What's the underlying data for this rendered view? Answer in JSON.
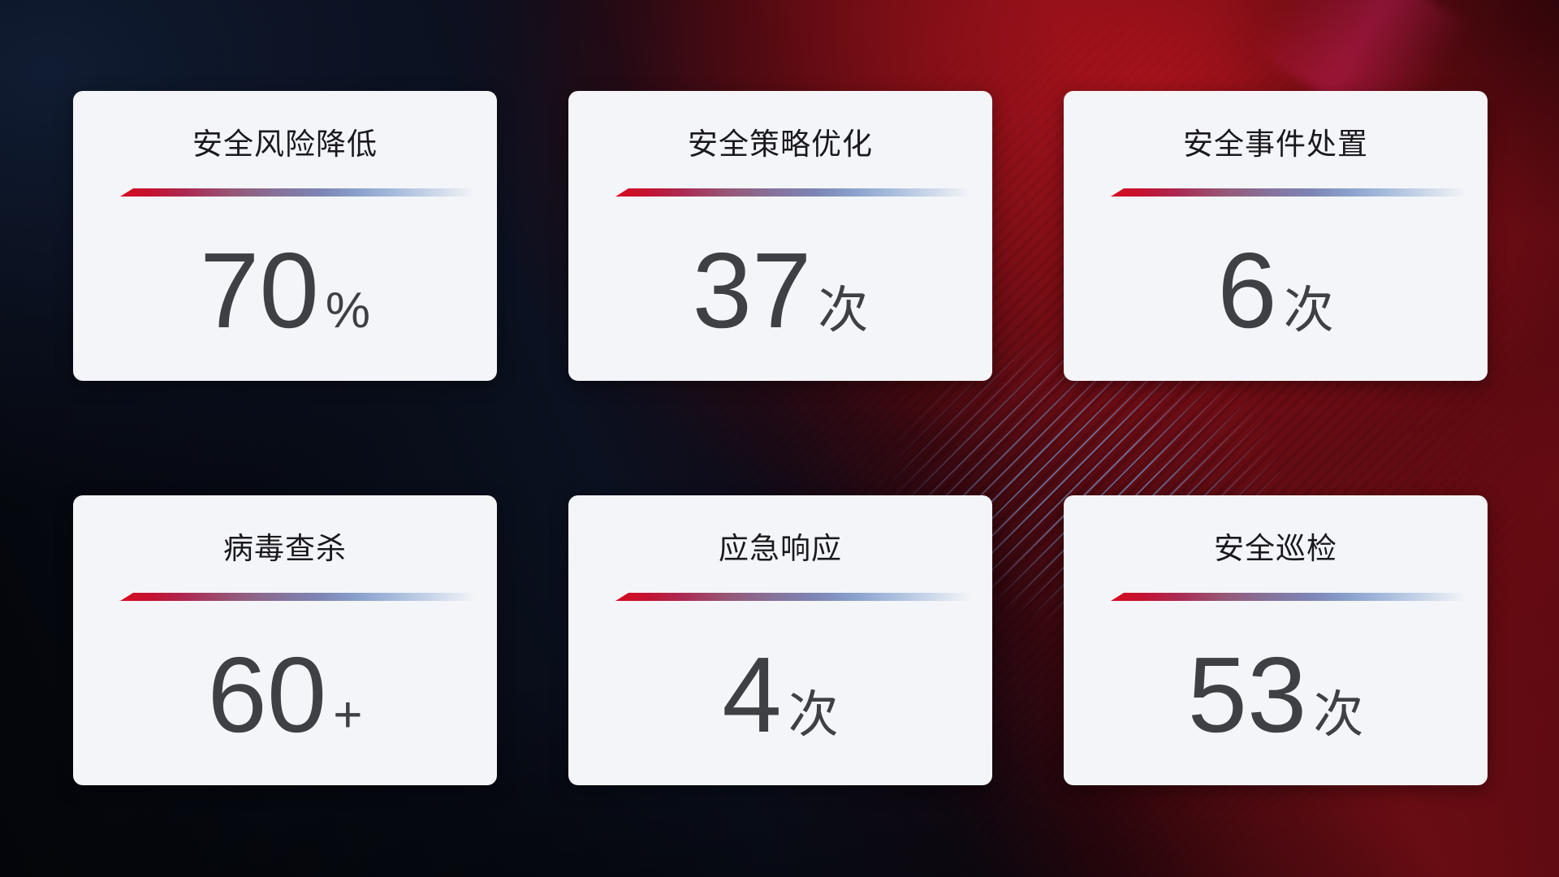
{
  "colors": {
    "card_background": "#f4f5f8",
    "title_text": "#1a1a1e",
    "value_text": "#3f4045",
    "divider_red": "#d50d20",
    "divider_blue": "#89a0cb",
    "background_navy": "#0c1424",
    "background_red": "#8e1117"
  },
  "cards": [
    {
      "title": "安全风险降低",
      "value": "70",
      "unit": "%"
    },
    {
      "title": "安全策略优化",
      "value": "37",
      "unit": "次"
    },
    {
      "title": "安全事件处置",
      "value": "6",
      "unit": "次"
    },
    {
      "title": "病毒查杀",
      "value": "60",
      "unit": "+"
    },
    {
      "title": "应急响应",
      "value": "4",
      "unit": "次"
    },
    {
      "title": "安全巡检",
      "value": "53",
      "unit": "次"
    }
  ]
}
